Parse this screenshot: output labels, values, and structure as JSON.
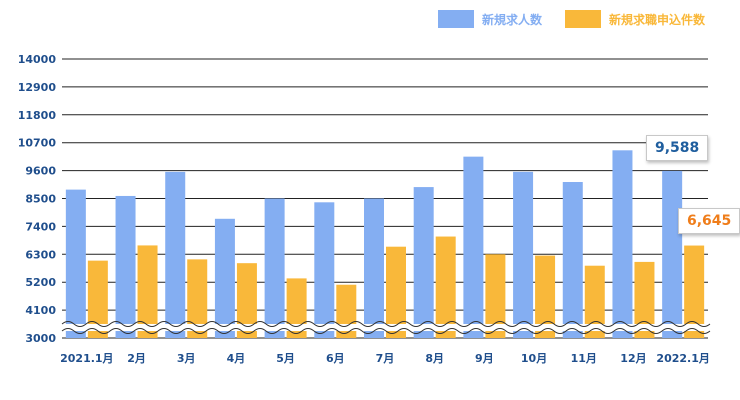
{
  "colors": {
    "series_0": "#84aef2",
    "series_1": "#f9b83a",
    "axis_text": "#1f4e8c",
    "callout_0": "#1f5e9e",
    "callout_1": "#ef7d1a"
  },
  "chart_data": {
    "type": "bar",
    "title": "",
    "xlabel": "",
    "ylabel": "",
    "categories": [
      "2021.1月",
      "2月",
      "3月",
      "4月",
      "5月",
      "6月",
      "7月",
      "8月",
      "9月",
      "10月",
      "11月",
      "12月",
      "2022.1月"
    ],
    "series": [
      {
        "name": "新規求人数",
        "values": [
          8850,
          8600,
          9550,
          7700,
          8500,
          8350,
          8500,
          8950,
          10150,
          9550,
          9150,
          10400,
          9588
        ]
      },
      {
        "name": "新規求職申込件数",
        "values": [
          6050,
          6650,
          6100,
          5950,
          5350,
          5100,
          6600,
          7000,
          6300,
          6250,
          5850,
          6000,
          6645
        ]
      }
    ],
    "yticks": [
      3000,
      4100,
      5200,
      6300,
      7400,
      8500,
      9600,
      10700,
      11800,
      12900,
      14000
    ],
    "ylim": [
      3000,
      14000
    ],
    "axis_break": true,
    "grid": true,
    "legend_position": "top-right",
    "annotations": [
      {
        "series": 0,
        "category": "2022.1月",
        "text": "9,588"
      },
      {
        "series": 1,
        "category": "2022.1月",
        "text": "6,645"
      }
    ]
  }
}
